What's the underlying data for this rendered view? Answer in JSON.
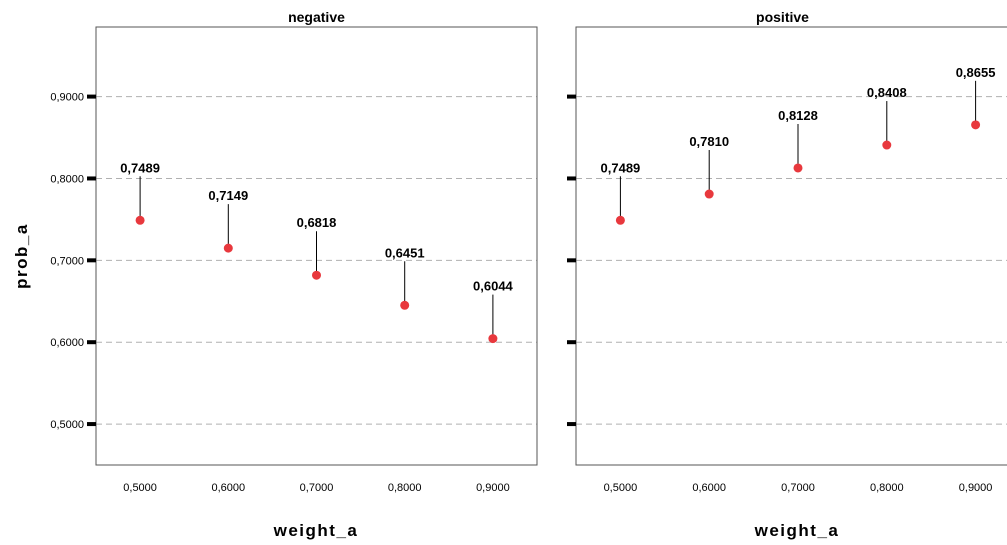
{
  "chart_data": {
    "type": "scatter",
    "ylabel": "prob_a",
    "yticks": [
      "0,5000",
      "0,6000",
      "0,7000",
      "0,8000",
      "0,9000"
    ],
    "ylim": [
      0.45,
      0.985
    ],
    "xlim": [
      0.45,
      0.95
    ],
    "grid": "horizontal dashed",
    "point_color": "#e8383d",
    "panels": [
      {
        "title": "negative",
        "xlabel": "weight_a",
        "xticks": [
          "0,5000",
          "0,6000",
          "0,7000",
          "0,8000",
          "0,9000"
        ],
        "x": [
          0.5,
          0.6,
          0.7,
          0.8,
          0.9
        ],
        "y": [
          0.7489,
          0.7149,
          0.6818,
          0.6451,
          0.6044
        ],
        "labels": [
          "0,7489",
          "0,7149",
          "0,6818",
          "0,6451",
          "0,6044"
        ]
      },
      {
        "title": "positive",
        "xlabel": "weight_a",
        "xticks": [
          "0,5000",
          "0,6000",
          "0,7000",
          "0,8000",
          "0,9000"
        ],
        "x": [
          0.5,
          0.6,
          0.7,
          0.8,
          0.9
        ],
        "y": [
          0.7489,
          0.781,
          0.8128,
          0.8408,
          0.8655
        ],
        "labels": [
          "0,7489",
          "0,7810",
          "0,8128",
          "0,8408",
          "0,8655"
        ]
      }
    ]
  }
}
